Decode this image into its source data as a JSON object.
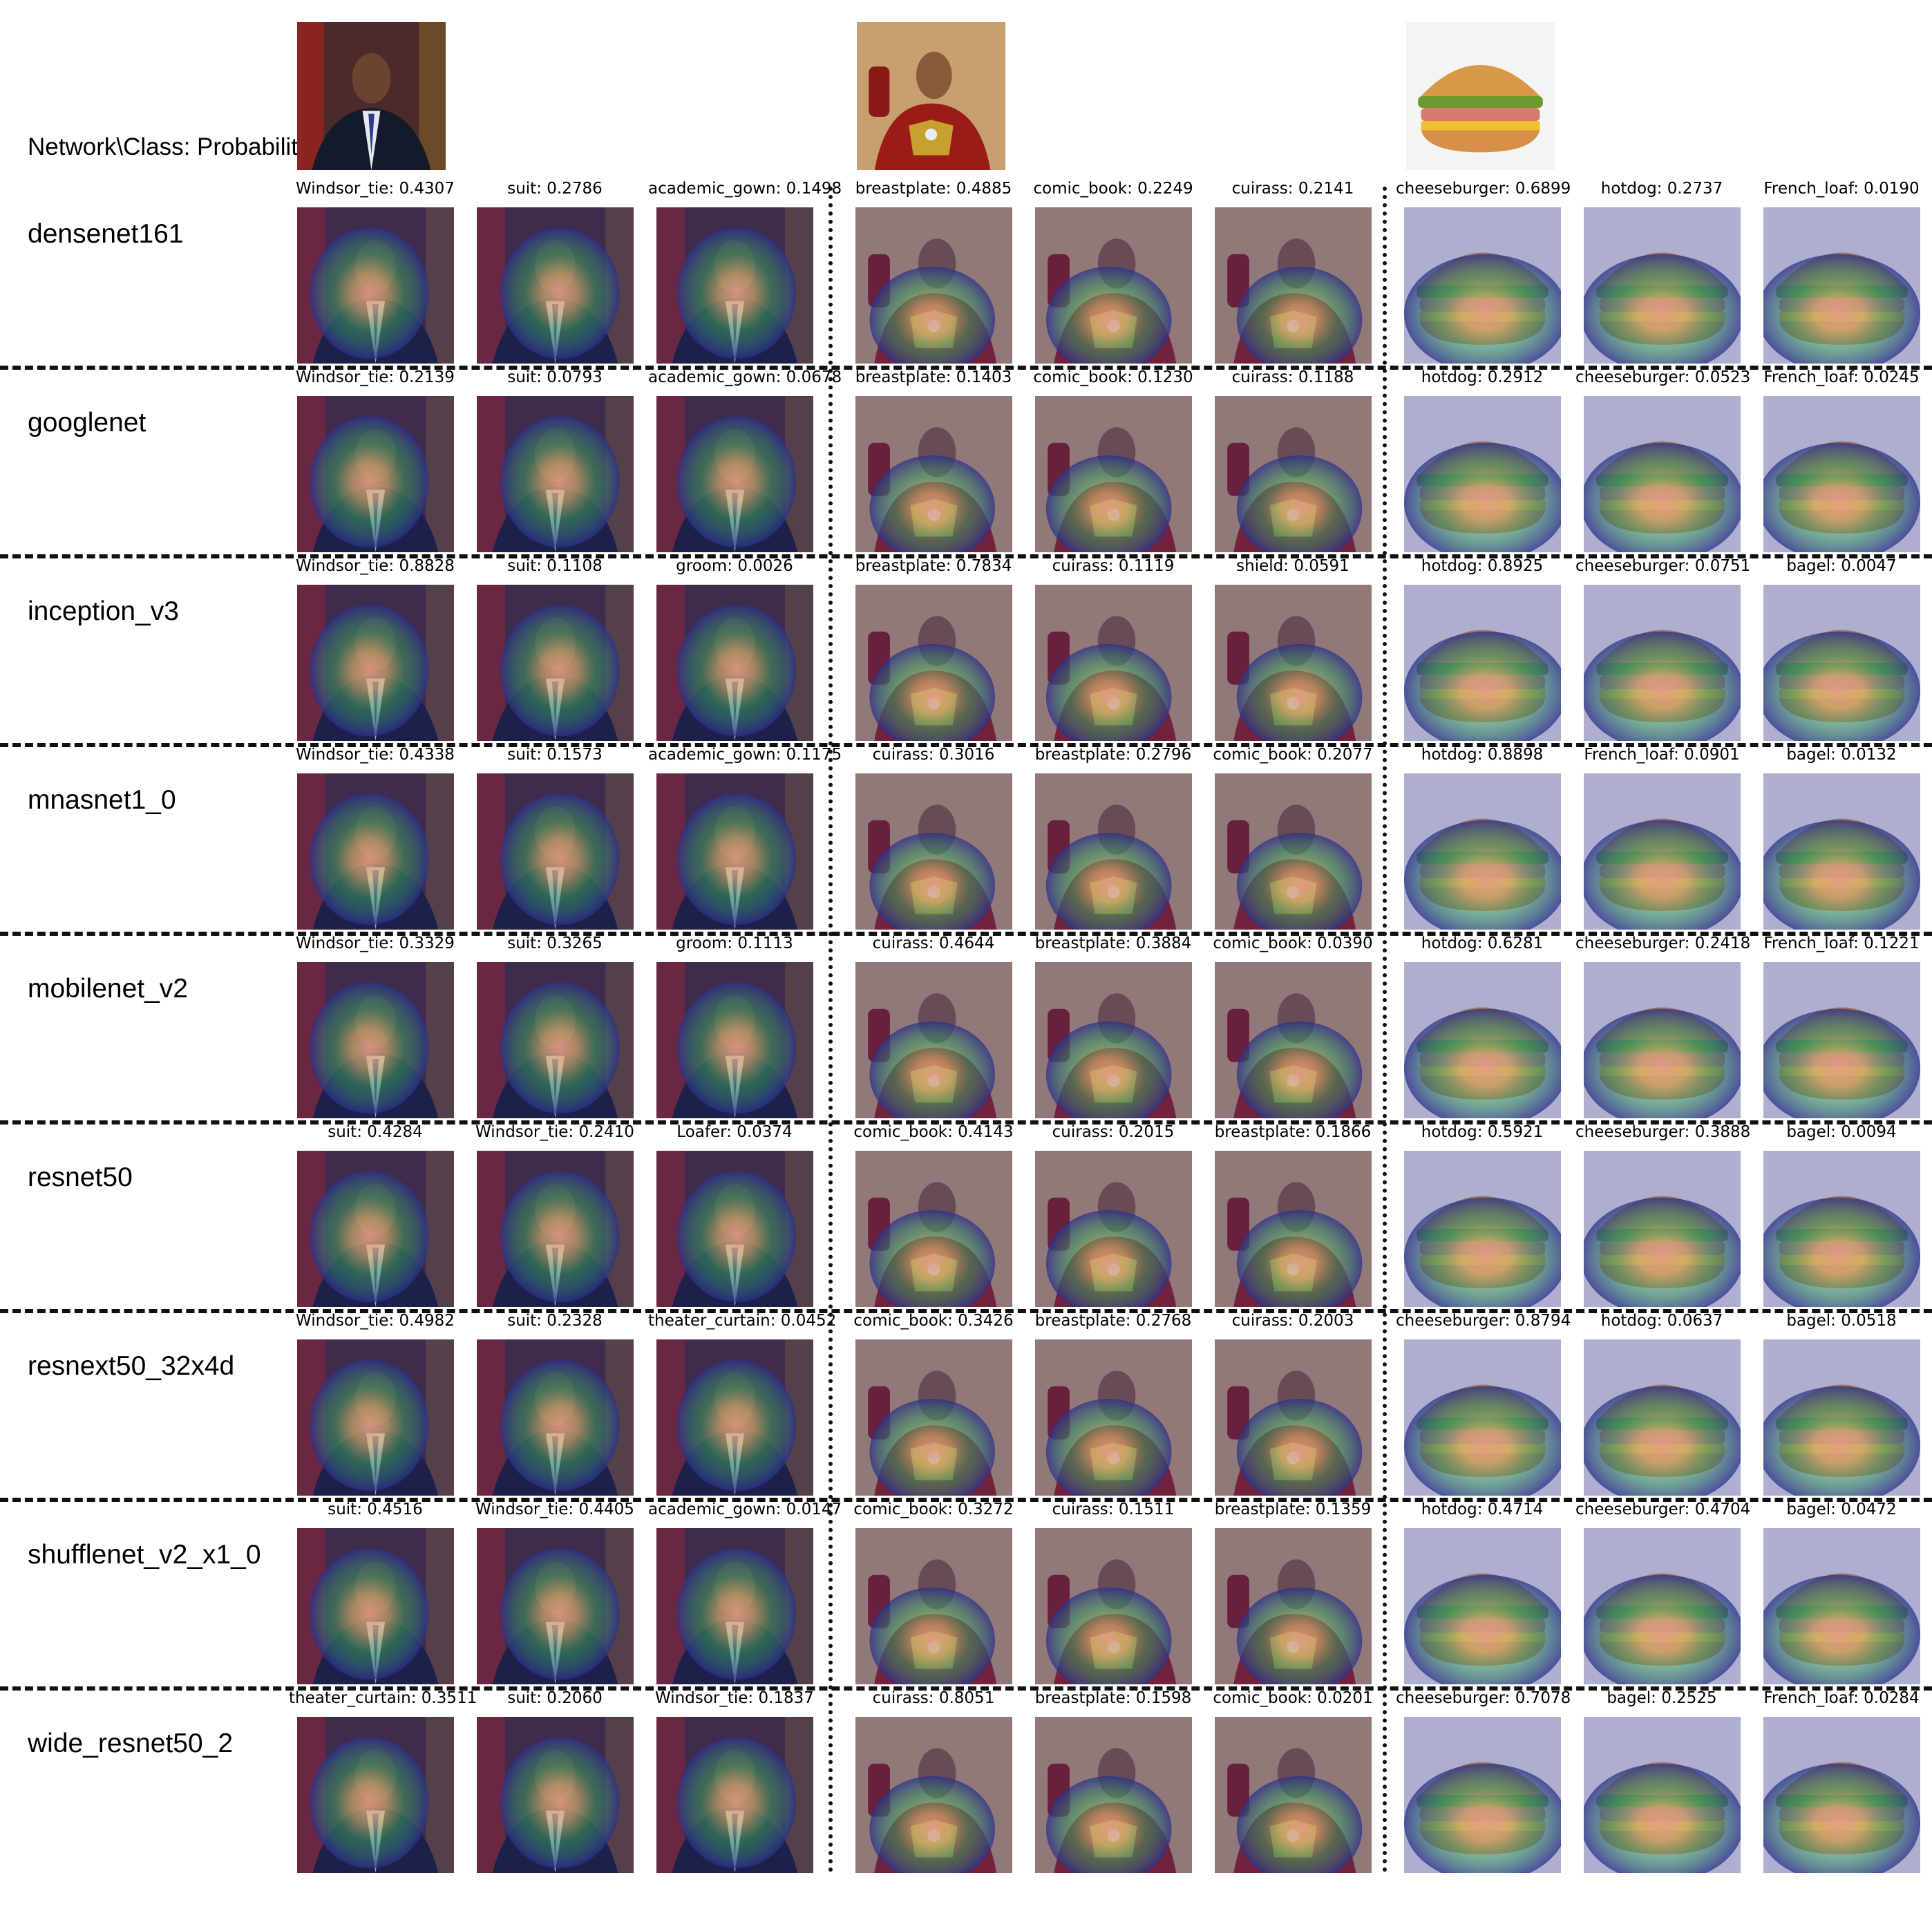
{
  "header": {
    "label": "Network\\Class: Probability"
  },
  "images": [
    {
      "name": "obama-photo",
      "kind": "person"
    },
    {
      "name": "ironman-photo",
      "kind": "hero"
    },
    {
      "name": "burger-photo",
      "kind": "burger"
    }
  ],
  "rows": [
    {
      "network": "densenet161",
      "cols": [
        {
          "cls": "Windsor_tie",
          "p": "0.4307"
        },
        {
          "cls": "suit",
          "p": "0.2786"
        },
        {
          "cls": "academic_gown",
          "p": "0.1498"
        },
        {
          "cls": "breastplate",
          "p": "0.4885"
        },
        {
          "cls": "comic_book",
          "p": "0.2249"
        },
        {
          "cls": "cuirass",
          "p": "0.2141"
        },
        {
          "cls": "cheeseburger",
          "p": "0.6899"
        },
        {
          "cls": "hotdog",
          "p": "0.2737"
        },
        {
          "cls": "French_loaf",
          "p": "0.0190"
        }
      ]
    },
    {
      "network": "googlenet",
      "cols": [
        {
          "cls": "Windsor_tie",
          "p": "0.2139"
        },
        {
          "cls": "suit",
          "p": "0.0793"
        },
        {
          "cls": "academic_gown",
          "p": "0.0678"
        },
        {
          "cls": "breastplate",
          "p": "0.1403"
        },
        {
          "cls": "comic_book",
          "p": "0.1230"
        },
        {
          "cls": "cuirass",
          "p": "0.1188"
        },
        {
          "cls": "hotdog",
          "p": "0.2912"
        },
        {
          "cls": "cheeseburger",
          "p": "0.0523"
        },
        {
          "cls": "French_loaf",
          "p": "0.0245"
        }
      ]
    },
    {
      "network": "inception_v3",
      "cols": [
        {
          "cls": "Windsor_tie",
          "p": "0.8828"
        },
        {
          "cls": "suit",
          "p": "0.1108"
        },
        {
          "cls": "groom",
          "p": "0.0026"
        },
        {
          "cls": "breastplate",
          "p": "0.7834"
        },
        {
          "cls": "cuirass",
          "p": "0.1119"
        },
        {
          "cls": "shield",
          "p": "0.0591"
        },
        {
          "cls": "hotdog",
          "p": "0.8925"
        },
        {
          "cls": "cheeseburger",
          "p": "0.0751"
        },
        {
          "cls": "bagel",
          "p": "0.0047"
        }
      ]
    },
    {
      "network": "mnasnet1_0",
      "cols": [
        {
          "cls": "Windsor_tie",
          "p": "0.4338"
        },
        {
          "cls": "suit",
          "p": "0.1573"
        },
        {
          "cls": "academic_gown",
          "p": "0.1175"
        },
        {
          "cls": "cuirass",
          "p": "0.3016"
        },
        {
          "cls": "breastplate",
          "p": "0.2796"
        },
        {
          "cls": "comic_book",
          "p": "0.2077"
        },
        {
          "cls": "hotdog",
          "p": "0.8898"
        },
        {
          "cls": "French_loaf",
          "p": "0.0901"
        },
        {
          "cls": "bagel",
          "p": "0.0132"
        }
      ]
    },
    {
      "network": "mobilenet_v2",
      "cols": [
        {
          "cls": "Windsor_tie",
          "p": "0.3329"
        },
        {
          "cls": "suit",
          "p": "0.3265"
        },
        {
          "cls": "groom",
          "p": "0.1113"
        },
        {
          "cls": "cuirass",
          "p": "0.4644"
        },
        {
          "cls": "breastplate",
          "p": "0.3884"
        },
        {
          "cls": "comic_book",
          "p": "0.0390"
        },
        {
          "cls": "hotdog",
          "p": "0.6281"
        },
        {
          "cls": "cheeseburger",
          "p": "0.2418"
        },
        {
          "cls": "French_loaf",
          "p": "0.1221"
        }
      ]
    },
    {
      "network": "resnet50",
      "cols": [
        {
          "cls": "suit",
          "p": "0.4284"
        },
        {
          "cls": "Windsor_tie",
          "p": "0.2410"
        },
        {
          "cls": "Loafer",
          "p": "0.0374"
        },
        {
          "cls": "comic_book",
          "p": "0.4143"
        },
        {
          "cls": "cuirass",
          "p": "0.2015"
        },
        {
          "cls": "breastplate",
          "p": "0.1866"
        },
        {
          "cls": "hotdog",
          "p": "0.5921"
        },
        {
          "cls": "cheeseburger",
          "p": "0.3888"
        },
        {
          "cls": "bagel",
          "p": "0.0094"
        }
      ]
    },
    {
      "network": "resnext50_32x4d",
      "cols": [
        {
          "cls": "Windsor_tie",
          "p": "0.4982"
        },
        {
          "cls": "suit",
          "p": "0.2328"
        },
        {
          "cls": "theater_curtain",
          "p": "0.0452"
        },
        {
          "cls": "comic_book",
          "p": "0.3426"
        },
        {
          "cls": "breastplate",
          "p": "0.2768"
        },
        {
          "cls": "cuirass",
          "p": "0.2003"
        },
        {
          "cls": "cheeseburger",
          "p": "0.8794"
        },
        {
          "cls": "hotdog",
          "p": "0.0637"
        },
        {
          "cls": "bagel",
          "p": "0.0518"
        }
      ]
    },
    {
      "network": "shufflenet_v2_x1_0",
      "cols": [
        {
          "cls": "suit",
          "p": "0.4516"
        },
        {
          "cls": "Windsor_tie",
          "p": "0.4405"
        },
        {
          "cls": "academic_gown",
          "p": "0.0147"
        },
        {
          "cls": "comic_book",
          "p": "0.3272"
        },
        {
          "cls": "cuirass",
          "p": "0.1511"
        },
        {
          "cls": "breastplate",
          "p": "0.1359"
        },
        {
          "cls": "hotdog",
          "p": "0.4714"
        },
        {
          "cls": "cheeseburger",
          "p": "0.4704"
        },
        {
          "cls": "bagel",
          "p": "0.0472"
        }
      ]
    },
    {
      "network": "wide_resnet50_2",
      "cols": [
        {
          "cls": "theater_curtain",
          "p": "0.3511"
        },
        {
          "cls": "suit",
          "p": "0.2060"
        },
        {
          "cls": "Windsor_tie",
          "p": "0.1837"
        },
        {
          "cls": "cuirass",
          "p": "0.8051"
        },
        {
          "cls": "breastplate",
          "p": "0.1598"
        },
        {
          "cls": "comic_book",
          "p": "0.0201"
        },
        {
          "cls": "cheeseburger",
          "p": "0.7078"
        },
        {
          "cls": "bagel",
          "p": "0.2525"
        },
        {
          "cls": "French_loaf",
          "p": "0.0284"
        }
      ]
    }
  ],
  "colors": {
    "heat_low": "#2c2f8a",
    "heat_mid": "#3fa860",
    "heat_high": "#f0a08a",
    "separator": "#111111"
  }
}
